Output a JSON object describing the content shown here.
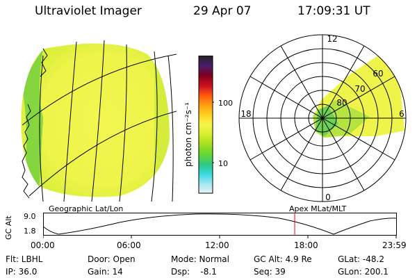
{
  "header": {
    "title": "Ultraviolet Imager",
    "date": "29 Apr 07",
    "time": "17:09:31 UT"
  },
  "colorbar": {
    "unit_label": "photon cm⁻²s⁻¹",
    "ticks": [
      "100",
      "10"
    ],
    "tick_values": [
      100,
      10
    ],
    "colors": [
      "#222222",
      "#4b1d6e",
      "#7a0020",
      "#cc1020",
      "#ff5a10",
      "#ffa010",
      "#ffd020",
      "#f4f54a",
      "#d8f030",
      "#a8e020",
      "#6cd830",
      "#30c880",
      "#38d8e0",
      "#9fe8f0",
      "#e6f0f4"
    ]
  },
  "polar_plot": {
    "mlt_labels": {
      "top": "12",
      "right": "6",
      "bottom": "0",
      "left": "18"
    },
    "lat_labels": [
      "80",
      "70",
      "60"
    ],
    "lat_values": [
      80,
      70,
      60
    ]
  },
  "timeline": {
    "left_label": "Geographic Lat/Lon",
    "right_label": "Apex MLat/MLT",
    "ylabel": "GC Alt",
    "ymax": "9.0",
    "ymin": "1.8",
    "xticks": [
      "00:00",
      "06:00",
      "12:00",
      "18:00",
      "23:59"
    ],
    "marker_time": "17:09",
    "marker_color": "#ee0000"
  },
  "status": {
    "flt": "Flt: LBHL",
    "ip": "IP: 36.0",
    "door": "Door: Open",
    "gain": "Gain: 14",
    "mode": "Mode: Normal",
    "dsp": "Dsp:    -8.1",
    "gcalt": "GC Alt: 4.9 Re",
    "seq": "Seq: 39",
    "glat": "GLat: -48.2",
    "glon": "GLon: 200.1"
  }
}
